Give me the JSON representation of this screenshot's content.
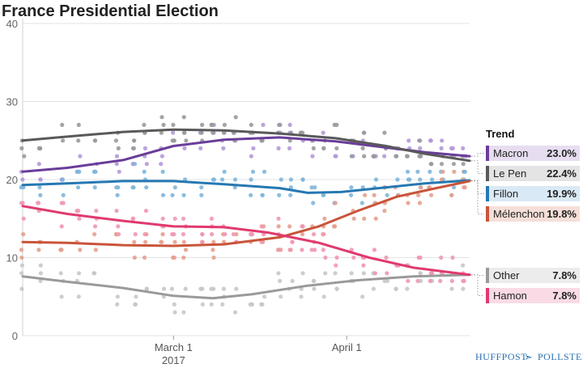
{
  "chart_data": {
    "type": "line",
    "title": "France Presidential Election",
    "ylim": [
      0,
      40
    ],
    "y_ticks": [
      0,
      10,
      20,
      30,
      40
    ],
    "x_range": [
      "2017-02-02",
      "2017-04-23"
    ],
    "x_ticks": [
      {
        "date": "2017-03-01",
        "label": "March 1",
        "sublabel": "2017"
      },
      {
        "date": "2017-04-01",
        "label": "April 1",
        "sublabel": ""
      }
    ],
    "legend_title": "Trend",
    "grid": true,
    "series": [
      {
        "name": "Macron",
        "value_label": "23.0%",
        "color": "#6a3d9a",
        "light": "#b49ad8",
        "bg": "#e7ddf1",
        "trend": [
          [
            "2017-02-02",
            21
          ],
          [
            "2017-02-10",
            21.5
          ],
          [
            "2017-02-20",
            22.5
          ],
          [
            "2017-03-01",
            24.3
          ],
          [
            "2017-03-10",
            25.1
          ],
          [
            "2017-03-20",
            25.4
          ],
          [
            "2017-03-30",
            24.9
          ],
          [
            "2017-04-08",
            24.1
          ],
          [
            "2017-04-15",
            23.5
          ],
          [
            "2017-04-23",
            23
          ]
        ]
      },
      {
        "name": "Le Pen",
        "value_label": "22.4%",
        "color": "#595959",
        "light": "#9a9a9a",
        "bg": "#e4e4e4",
        "trend": [
          [
            "2017-02-02",
            25
          ],
          [
            "2017-02-10",
            25.5
          ],
          [
            "2017-02-20",
            26.1
          ],
          [
            "2017-03-01",
            26.4
          ],
          [
            "2017-03-10",
            26.3
          ],
          [
            "2017-03-20",
            25.9
          ],
          [
            "2017-03-30",
            25.3
          ],
          [
            "2017-04-08",
            24.3
          ],
          [
            "2017-04-15",
            23.3
          ],
          [
            "2017-04-23",
            22.4
          ]
        ]
      },
      {
        "name": "Fillon",
        "value_label": "19.9%",
        "color": "#2678b2",
        "light": "#7fb6dc",
        "bg": "#d9e9f5",
        "trend": [
          [
            "2017-02-02",
            19.3
          ],
          [
            "2017-02-10",
            19.5
          ],
          [
            "2017-02-20",
            19.8
          ],
          [
            "2017-03-01",
            19.8
          ],
          [
            "2017-03-10",
            19.4
          ],
          [
            "2017-03-20",
            18.9
          ],
          [
            "2017-03-25",
            18.3
          ],
          [
            "2017-03-31",
            18.4
          ],
          [
            "2017-04-08",
            19.0
          ],
          [
            "2017-04-15",
            19.5
          ],
          [
            "2017-04-23",
            19.9
          ]
        ]
      },
      {
        "name": "Mélenchon",
        "value_label": "19.8%",
        "color": "#c9543a",
        "light": "#e6a08d",
        "bg": "#f6dfd8",
        "trend": [
          [
            "2017-02-02",
            12
          ],
          [
            "2017-02-10",
            11.9
          ],
          [
            "2017-02-20",
            11.6
          ],
          [
            "2017-03-01",
            11.5
          ],
          [
            "2017-03-10",
            11.7
          ],
          [
            "2017-03-20",
            12.6
          ],
          [
            "2017-03-27",
            14.0
          ],
          [
            "2017-04-03",
            16.0
          ],
          [
            "2017-04-10",
            17.8
          ],
          [
            "2017-04-17",
            18.9
          ],
          [
            "2017-04-23",
            19.8
          ]
        ]
      },
      {
        "name": "Other",
        "value_label": "7.8%",
        "color": "#9a9a9a",
        "light": "#c8c8c8",
        "bg": "#ececec",
        "trend": [
          [
            "2017-02-02",
            7.6
          ],
          [
            "2017-02-10",
            6.9
          ],
          [
            "2017-02-20",
            6.1
          ],
          [
            "2017-03-01",
            5.1
          ],
          [
            "2017-03-08",
            4.8
          ],
          [
            "2017-03-15",
            5.3
          ],
          [
            "2017-03-25",
            6.4
          ],
          [
            "2017-04-03",
            7.1
          ],
          [
            "2017-04-13",
            7.6
          ],
          [
            "2017-04-23",
            7.8
          ]
        ]
      },
      {
        "name": "Hamon",
        "value_label": "7.8%",
        "color": "#e03a6e",
        "light": "#ef98b4",
        "bg": "#fadbe5",
        "trend": [
          [
            "2017-02-02",
            16.6
          ],
          [
            "2017-02-10",
            15.6
          ],
          [
            "2017-02-20",
            14.7
          ],
          [
            "2017-03-01",
            14.0
          ],
          [
            "2017-03-10",
            13.9
          ],
          [
            "2017-03-18",
            13.2
          ],
          [
            "2017-03-27",
            11.9
          ],
          [
            "2017-04-05",
            10.0
          ],
          [
            "2017-04-13",
            8.7
          ],
          [
            "2017-04-23",
            7.8
          ]
        ]
      }
    ],
    "poll_dates": [
      "2017-02-02",
      "2017-02-05",
      "2017-02-09",
      "2017-02-12",
      "2017-02-15",
      "2017-02-19",
      "2017-02-22",
      "2017-02-24",
      "2017-02-27",
      "2017-03-01",
      "2017-03-03",
      "2017-03-06",
      "2017-03-08",
      "2017-03-10",
      "2017-03-12",
      "2017-03-15",
      "2017-03-17",
      "2017-03-20",
      "2017-03-22",
      "2017-03-24",
      "2017-03-26",
      "2017-03-28",
      "2017-03-30",
      "2017-04-02",
      "2017-04-04",
      "2017-04-06",
      "2017-04-08",
      "2017-04-10",
      "2017-04-12",
      "2017-04-14",
      "2017-04-16",
      "2017-04-18",
      "2017-04-20",
      "2017-04-22"
    ]
  },
  "credit": {
    "left": "HUFFPOST",
    "right": "POLLSTER"
  }
}
